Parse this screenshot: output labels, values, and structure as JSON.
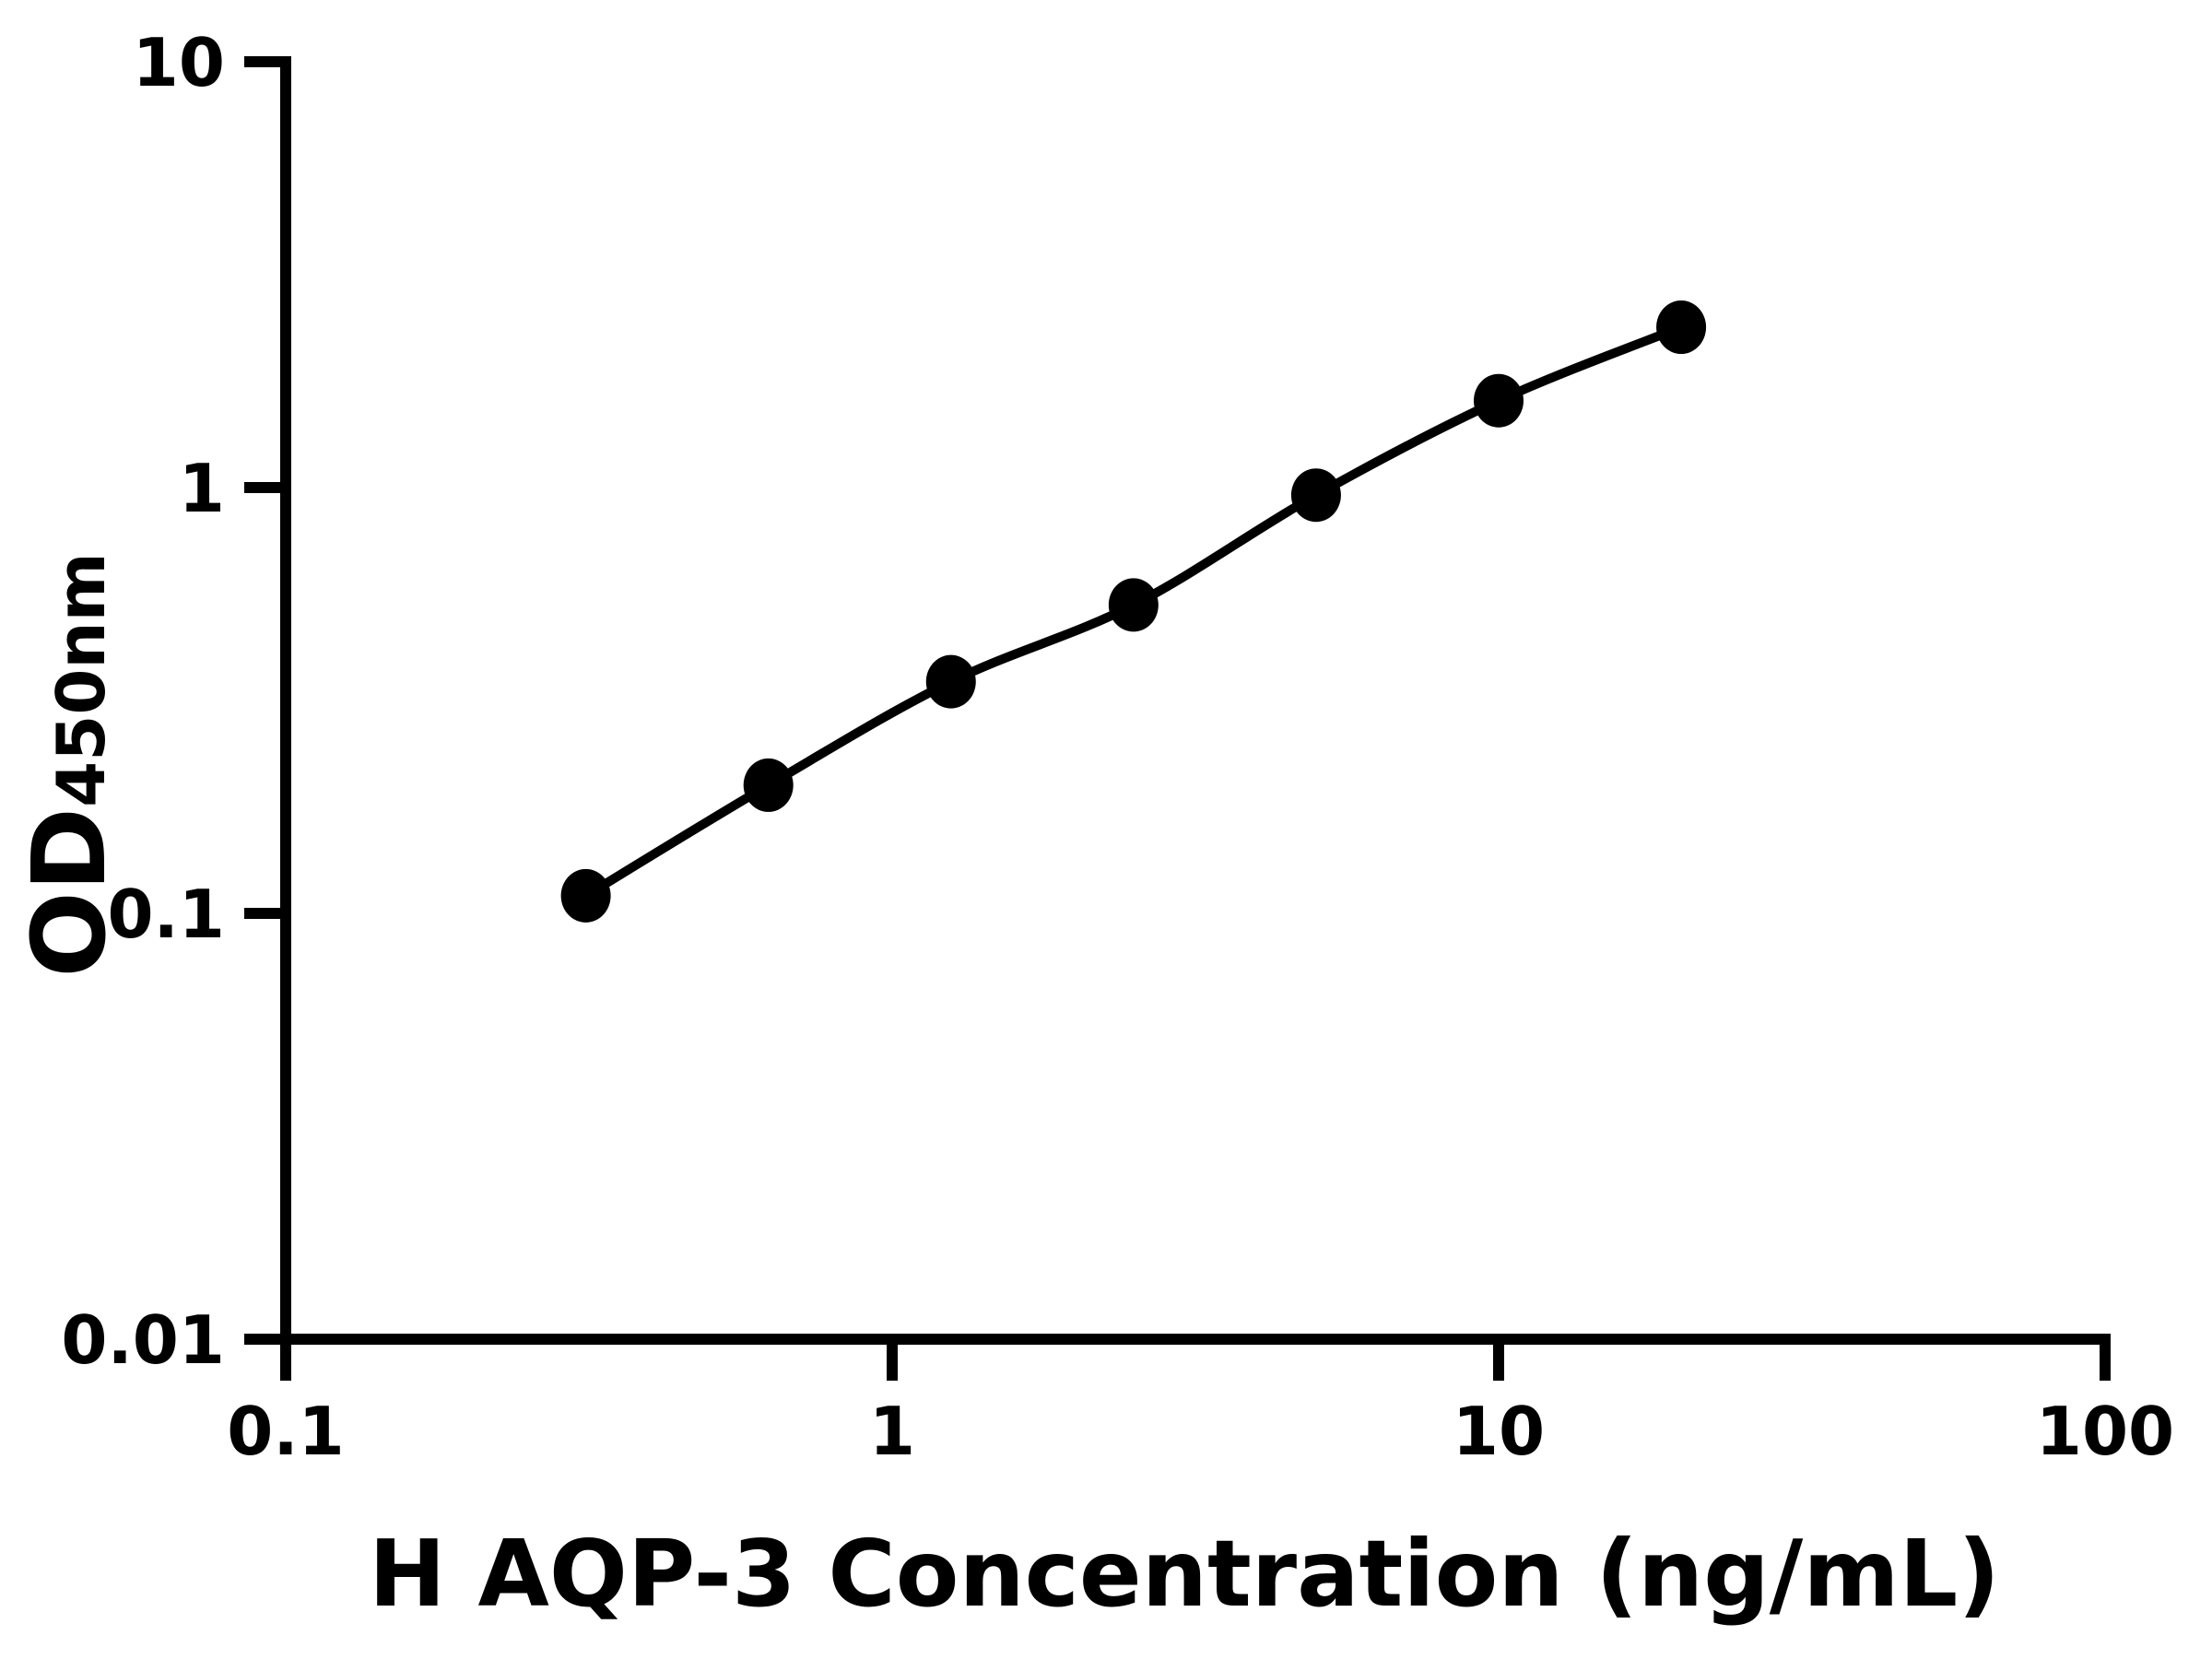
{
  "chart_data": {
    "type": "line",
    "xlabel": "H AQP-3 Concentration (ng/mL)",
    "ylabel": "OD450nm",
    "ylabel_main": "OD",
    "ylabel_sub": "450nm",
    "xscale": "log",
    "yscale": "log",
    "xlim": [
      0.1,
      100
    ],
    "ylim": [
      0.01,
      10
    ],
    "x_tick_values": [
      0.1,
      1,
      10,
      100
    ],
    "x_tick_labels": [
      "0.1",
      "1",
      "10",
      "100"
    ],
    "y_tick_values": [
      10,
      1,
      0.1,
      0.01
    ],
    "y_tick_labels": [
      "10",
      "1",
      "0.1",
      "0.01"
    ],
    "x": [
      0.3125,
      0.625,
      1.25,
      2.5,
      5,
      10,
      20
    ],
    "y": [
      0.11,
      0.2,
      0.35,
      0.53,
      0.96,
      1.6,
      2.38
    ],
    "marker_color": "#000000",
    "line_color": "#000000",
    "axis_color": "#000000",
    "background": "#ffffff",
    "grid": false,
    "legend": false
  }
}
